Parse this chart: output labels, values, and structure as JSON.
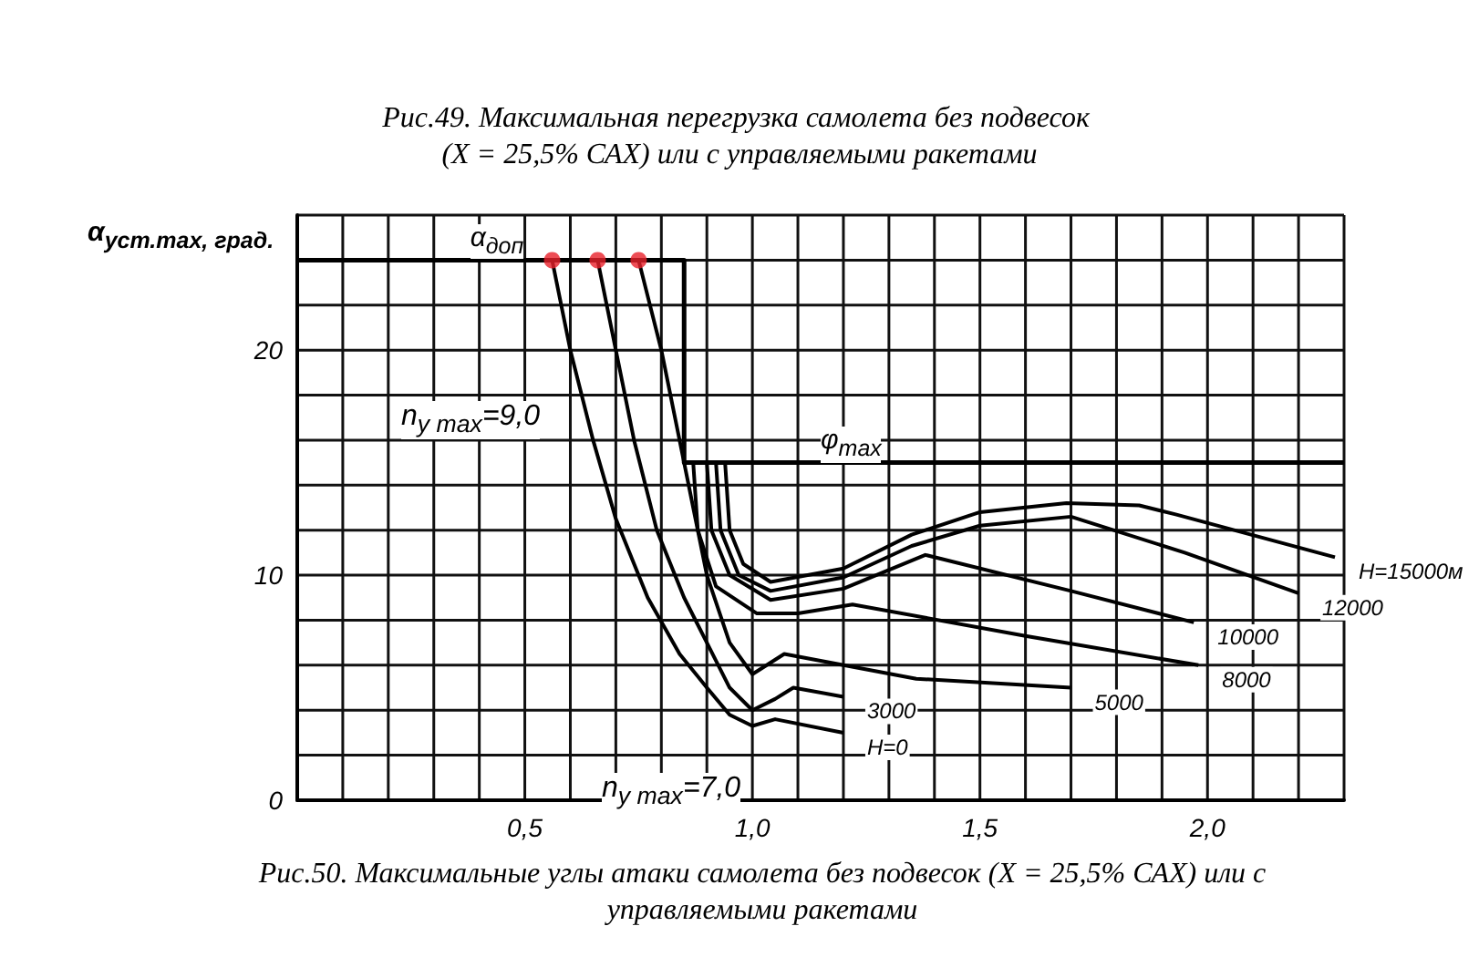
{
  "chart_data": {
    "type": "line",
    "title": "Рис.49. Максимальная перегрузка самолета без подвесок (X = 25,5% САХ) или с управляемыми ракетами",
    "ylabel": "α$_{уст.max, град.}$",
    "xlim": [
      0,
      2.3
    ],
    "xticks": [
      {
        "value": 0,
        "label": null
      },
      {
        "value": 0.1,
        "label": null
      },
      {
        "value": 0.2,
        "label": null
      },
      {
        "value": 0.3,
        "label": null
      },
      {
        "value": 0.4,
        "label": null
      },
      {
        "value": 0.5,
        "label": "0,5"
      },
      {
        "value": 0.6,
        "label": null
      },
      {
        "value": 0.7,
        "label": null
      },
      {
        "value": 0.8,
        "label": null
      },
      {
        "value": 0.9,
        "label": null
      },
      {
        "value": 1.0,
        "label": "1,0"
      },
      {
        "value": 1.1,
        "label": null
      },
      {
        "value": 1.2,
        "label": null
      },
      {
        "value": 1.3,
        "label": null
      },
      {
        "value": 1.4,
        "label": null
      },
      {
        "value": 1.5,
        "label": "1,5"
      },
      {
        "value": 1.6,
        "label": null
      },
      {
        "value": 1.7,
        "label": null
      },
      {
        "value": 1.8,
        "label": null
      },
      {
        "value": 1.9,
        "label": null
      },
      {
        "value": 2.0,
        "label": "2,0"
      },
      {
        "value": 2.1,
        "label": null
      },
      {
        "value": 2.2,
        "label": null
      },
      {
        "value": 2.3,
        "label": null
      }
    ],
    "ylim": [
      0,
      26
    ],
    "yticks": [
      0,
      {
        "value": 2,
        "label": null
      },
      {
        "value": 4,
        "label": null
      },
      {
        "value": 6,
        "label": null
      },
      {
        "value": 8,
        "label": null
      },
      10,
      {
        "value": 12,
        "label": null
      },
      {
        "value": 14,
        "label": null
      },
      {
        "value": 16,
        "label": null
      },
      {
        "value": 18,
        "label": null
      },
      20,
      {
        "value": 22,
        "label": null
      },
      {
        "value": 24,
        "label": null
      },
      {
        "value": 26,
        "label": null
      }
    ],
    "grid": true,
    "series": [
      {
        "type": "line",
        "color": "#000000",
        "x": [
          0,
          0.85,
          0.85,
          2.3
        ],
        "values": [
          24,
          24,
          15,
          15
        ]
      },
      {
        "name": "H=0",
        "color": "#000000",
        "x": [
          0.56,
          0.6,
          0.65,
          0.7,
          0.77,
          0.84,
          0.9,
          0.95,
          1.0,
          1.05,
          1.2
        ],
        "values": [
          24,
          20,
          16,
          12.5,
          9,
          6.5,
          5,
          3.8,
          3.3,
          3.6,
          3.0
        ]
      },
      {
        "name": "3000",
        "color": "#000000",
        "x": [
          0.66,
          0.7,
          0.74,
          0.79,
          0.85,
          0.9,
          0.95,
          1.0,
          1.05,
          1.09,
          1.2
        ],
        "values": [
          24,
          20,
          16,
          12,
          9,
          7,
          5,
          4.0,
          4.5,
          5.0,
          4.6
        ]
      },
      {
        "name": "5000",
        "color": "#000000",
        "x": [
          0.75,
          0.8,
          0.84,
          0.87,
          0.9,
          0.95,
          1.0,
          1.07,
          1.36,
          1.7
        ],
        "values": [
          24,
          20,
          16,
          13,
          10,
          7,
          5.6,
          6.5,
          5.4,
          5.0
        ]
      },
      {
        "name": "8000",
        "color": "#000000",
        "x": [
          0.87,
          0.88,
          0.92,
          1.01,
          1.1,
          1.22,
          1.6,
          1.98
        ],
        "values": [
          15,
          12,
          9.5,
          8.3,
          8.3,
          8.7,
          7.3,
          6.0
        ]
      },
      {
        "name": "10000",
        "color": "#000000",
        "x": [
          0.9,
          0.91,
          0.95,
          1.04,
          1.2,
          1.38,
          1.7,
          1.97
        ],
        "values": [
          15,
          12,
          10,
          8.9,
          9.4,
          10.9,
          9.3,
          7.9
        ]
      },
      {
        "name": "12000",
        "color": "#000000",
        "x": [
          0.92,
          0.93,
          0.97,
          1.04,
          1.2,
          1.35,
          1.5,
          1.7,
          1.95,
          2.2
        ],
        "values": [
          15,
          12,
          10,
          9.3,
          9.9,
          11.3,
          12.2,
          12.6,
          11,
          9.2
        ]
      },
      {
        "name": "H=15000м",
        "color": "#000000",
        "x": [
          0.94,
          0.95,
          0.98,
          1.04,
          1.2,
          1.35,
          1.5,
          1.69,
          1.85,
          1.93,
          2.28
        ],
        "values": [
          15,
          12,
          10.5,
          9.7,
          10.3,
          11.8,
          12.8,
          13.2,
          13.1,
          12.7,
          10.8
        ]
      },
      {
        "type": "scatter",
        "marker": "circle",
        "color": "#e8202a",
        "x": [
          0.56,
          0.66,
          0.75
        ],
        "values": [
          24,
          24,
          24
        ]
      }
    ],
    "annotations": [
      {
        "text": "α$_{доп}$",
        "x": 0.38,
        "y": 24
      },
      {
        "text": "φ$_{max}$",
        "x": 1.15,
        "y": 15
      },
      "n$_{y max}$=9,0",
      "n$_{y max}$=7,0",
      "Рис.50. Максимальные углы атаки самолета без подвесок (X = 25,5% САХ) или с управляемыми ракетами"
    ]
  }
}
